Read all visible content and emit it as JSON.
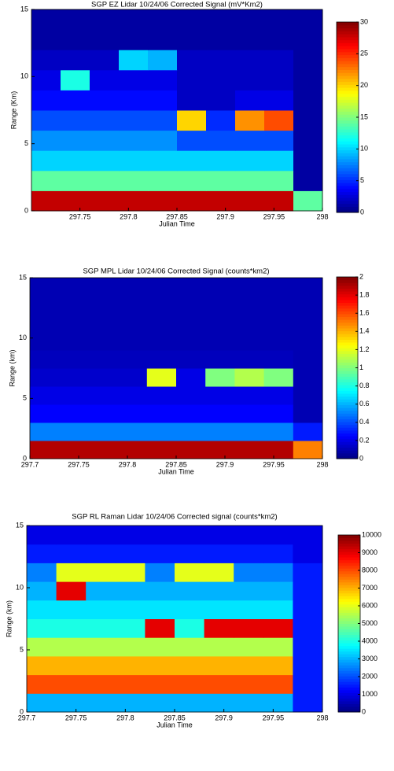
{
  "chart_data": [
    {
      "type": "heatmap",
      "title": "SGP EZ Lidar 10/24/06 Corrected Signal (mV*Km2)",
      "xlabel": "Julian Time",
      "ylabel": "Range (Km)",
      "xlim": [
        297.7,
        298
      ],
      "ylim": [
        0,
        15
      ],
      "xticks": [
        297.75,
        297.8,
        297.85,
        297.9,
        297.95,
        298
      ],
      "yticks": [
        0,
        5,
        10,
        15
      ],
      "clim": [
        0,
        30
      ],
      "cticks": [
        0,
        5,
        10,
        15,
        20,
        25,
        30
      ],
      "x": [
        297.715,
        297.745,
        297.775,
        297.805,
        297.835,
        297.865,
        297.895,
        297.925,
        297.955,
        297.985
      ],
      "y": [
        0.75,
        2.25,
        3.75,
        5.25,
        6.75,
        8.25,
        9.75,
        11.25,
        12.75,
        14.25
      ],
      "z": [
        [
          28,
          28,
          28,
          28,
          28,
          28,
          28,
          28,
          28,
          14
        ],
        [
          14,
          14,
          14,
          14,
          14,
          14,
          14,
          14,
          14,
          1
        ],
        [
          10,
          10,
          10,
          10,
          10,
          10,
          10,
          10,
          10,
          1
        ],
        [
          8,
          8,
          8,
          8,
          8,
          6,
          6,
          6,
          6,
          1
        ],
        [
          6,
          6,
          6,
          6,
          6,
          20,
          5,
          22,
          24,
          1
        ],
        [
          4,
          4,
          4,
          4,
          4,
          2,
          2,
          3,
          3,
          1
        ],
        [
          3,
          12,
          3,
          3,
          3,
          2,
          2,
          2,
          2,
          1
        ],
        [
          2,
          2,
          2,
          10,
          9,
          2,
          2,
          2,
          2,
          1
        ],
        [
          1,
          1,
          1,
          1,
          1,
          1,
          1,
          1,
          1,
          1
        ],
        [
          1,
          1,
          1,
          1,
          1,
          1,
          1,
          1,
          1,
          1
        ]
      ]
    },
    {
      "type": "heatmap",
      "title": "SGP MPL Lidar 10/24/06 Corrected Signal (counts*km2)",
      "xlabel": "Julian Time",
      "ylabel": "Range (km)",
      "xlim": [
        297.7,
        298
      ],
      "ylim": [
        0,
        15
      ],
      "xticks": [
        297.7,
        297.75,
        297.8,
        297.85,
        297.9,
        297.95,
        298
      ],
      "yticks": [
        0,
        5,
        10,
        15
      ],
      "clim": [
        0,
        2
      ],
      "cticks": [
        0,
        0.2,
        0.4,
        0.6,
        0.8,
        1,
        1.2,
        1.4,
        1.6,
        1.8,
        2
      ],
      "x": [
        297.715,
        297.745,
        297.775,
        297.805,
        297.835,
        297.865,
        297.895,
        297.925,
        297.955,
        297.985
      ],
      "y": [
        0.75,
        2.25,
        3.75,
        5.25,
        6.75,
        8.25,
        9.75,
        11.25,
        12.75,
        14.25
      ],
      "z": [
        [
          1.9,
          1.9,
          1.9,
          1.9,
          1.9,
          1.9,
          1.9,
          1.9,
          1.9,
          1.5
        ],
        [
          0.5,
          0.5,
          0.5,
          0.5,
          0.5,
          0.5,
          0.5,
          0.5,
          0.5,
          0.3
        ],
        [
          0.25,
          0.25,
          0.25,
          0.25,
          0.25,
          0.25,
          0.25,
          0.25,
          0.25,
          0.1
        ],
        [
          0.2,
          0.2,
          0.2,
          0.2,
          0.2,
          0.2,
          0.2,
          0.2,
          0.2,
          0.1
        ],
        [
          0.15,
          0.15,
          0.15,
          0.15,
          1.2,
          0.2,
          1,
          1.1,
          1,
          0.1
        ],
        [
          0.12,
          0.12,
          0.12,
          0.12,
          0.12,
          0.12,
          0.12,
          0.12,
          0.12,
          0.1
        ],
        [
          0.1,
          0.1,
          0.1,
          0.1,
          0.1,
          0.1,
          0.1,
          0.1,
          0.1,
          0.1
        ],
        [
          0.1,
          0.1,
          0.1,
          0.1,
          0.1,
          0.1,
          0.1,
          0.1,
          0.1,
          0.1
        ],
        [
          0.1,
          0.1,
          0.1,
          0.1,
          0.1,
          0.1,
          0.1,
          0.1,
          0.1,
          0.1
        ],
        [
          0.1,
          0.1,
          0.1,
          0.1,
          0.1,
          0.1,
          0.1,
          0.1,
          0.1,
          0.1
        ]
      ]
    },
    {
      "type": "heatmap",
      "title": "SGP RL Raman Lidar 10/24/06 Corrected signal (counts*km2)",
      "xlabel": "Julian Time",
      "ylabel": "Range (km)",
      "xlim": [
        297.7,
        298
      ],
      "ylim": [
        0,
        15
      ],
      "xticks": [
        297.7,
        297.75,
        297.8,
        297.85,
        297.9,
        297.95,
        298
      ],
      "yticks": [
        0,
        5,
        10,
        15
      ],
      "clim": [
        0,
        10000
      ],
      "cticks": [
        0,
        1000,
        2000,
        3000,
        4000,
        5000,
        6000,
        7000,
        8000,
        9000,
        10000
      ],
      "x": [
        297.715,
        297.745,
        297.775,
        297.805,
        297.835,
        297.865,
        297.895,
        297.925,
        297.955,
        297.985
      ],
      "y": [
        0.75,
        2.25,
        3.75,
        5.25,
        6.75,
        8.25,
        9.75,
        11.25,
        12.75,
        14.25
      ],
      "z": [
        [
          3000,
          3000,
          3000,
          3000,
          3000,
          3000,
          3000,
          3000,
          3000,
          1500
        ],
        [
          8000,
          8000,
          8000,
          8000,
          8000,
          8000,
          8000,
          8000,
          8000,
          1500
        ],
        [
          7000,
          7000,
          7000,
          7000,
          7000,
          7000,
          7000,
          7000,
          7000,
          1500
        ],
        [
          5500,
          5500,
          5500,
          5500,
          5500,
          5500,
          5500,
          5500,
          5500,
          1500
        ],
        [
          4000,
          4000,
          4000,
          4000,
          9000,
          4000,
          9000,
          9000,
          9000,
          1500
        ],
        [
          3500,
          3500,
          3500,
          3500,
          3500,
          3500,
          3500,
          3500,
          3500,
          1500
        ],
        [
          3000,
          9000,
          3000,
          3000,
          3000,
          3000,
          3000,
          3000,
          3000,
          1500
        ],
        [
          2500,
          6000,
          6000,
          6000,
          2500,
          6000,
          6000,
          2500,
          2500,
          1500
        ],
        [
          1500,
          1500,
          1500,
          1500,
          1500,
          1500,
          1500,
          1500,
          1500,
          1000
        ],
        [
          1000,
          1000,
          1000,
          1000,
          1000,
          1000,
          1000,
          1000,
          1000,
          1000
        ]
      ]
    }
  ]
}
